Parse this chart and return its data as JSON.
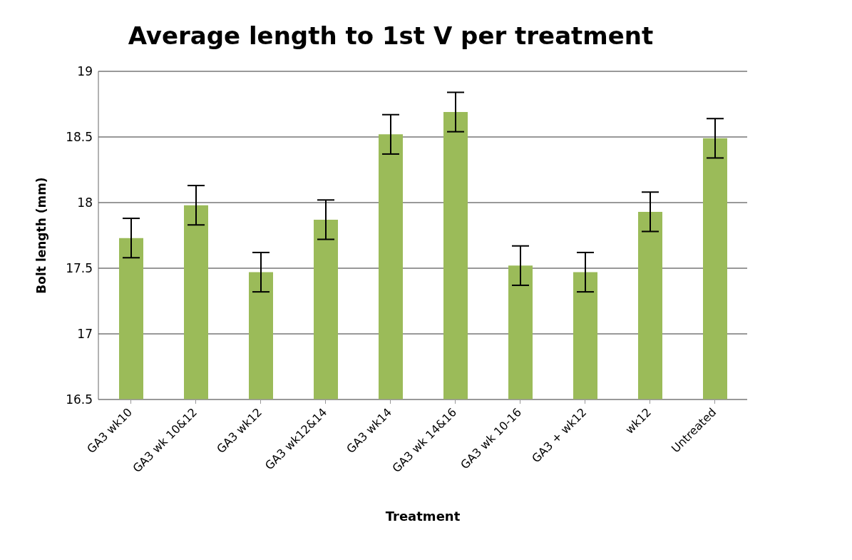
{
  "chart_data": {
    "type": "bar",
    "title": "Average length to 1st V per treatment",
    "xlabel": "Treatment",
    "ylabel": "Bolt length (mm)",
    "categories": [
      "GA3 wk10",
      "GA3 wk 10&12",
      "GA3 wk12",
      "GA3 wk12&14",
      "GA3 wk14",
      "GA3 wk 14&16",
      "GA3 wk 10-16",
      "GA3 + wk12",
      "wk12",
      "Untreated"
    ],
    "values": [
      17.73,
      17.98,
      17.47,
      17.87,
      18.52,
      18.69,
      17.52,
      17.47,
      17.93,
      18.49
    ],
    "errors": [
      0.15,
      0.15,
      0.15,
      0.15,
      0.15,
      0.15,
      0.15,
      0.15,
      0.15,
      0.15
    ],
    "color": "#9bbb59",
    "ylim": [
      16.5,
      19
    ],
    "yticks": [
      16.5,
      17,
      17.5,
      18,
      18.5,
      19
    ],
    "grid": "y"
  }
}
